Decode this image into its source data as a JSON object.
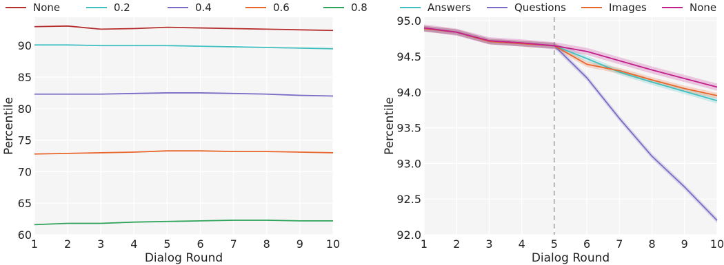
{
  "chart_data": [
    {
      "type": "line",
      "xlabel": "Dialog Round",
      "ylabel": "Percentile",
      "x": [
        1,
        2,
        3,
        4,
        5,
        6,
        7,
        8,
        9,
        10
      ],
      "xlim": [
        1,
        10
      ],
      "ylim": [
        60,
        94.5
      ],
      "xticks": [
        1,
        2,
        3,
        4,
        5,
        6,
        7,
        8,
        9,
        10
      ],
      "yticks": [
        60,
        65,
        70,
        75,
        80,
        85,
        90
      ],
      "grid": true,
      "legend_position": "top",
      "series": [
        {
          "name": "None",
          "color": "#b5302f",
          "values": [
            93.0,
            93.1,
            92.6,
            92.7,
            92.9,
            92.8,
            92.7,
            92.6,
            92.5,
            92.4
          ]
        },
        {
          "name": "0.2",
          "color": "#3fbfbf",
          "values": [
            90.1,
            90.1,
            90.0,
            90.0,
            90.0,
            89.9,
            89.8,
            89.7,
            89.6,
            89.5
          ]
        },
        {
          "name": "0.4",
          "color": "#7a6cc4",
          "values": [
            82.3,
            82.3,
            82.3,
            82.4,
            82.5,
            82.5,
            82.4,
            82.3,
            82.1,
            82.0
          ]
        },
        {
          "name": "0.6",
          "color": "#e8662a",
          "values": [
            72.8,
            72.9,
            73.0,
            73.1,
            73.3,
            73.3,
            73.2,
            73.2,
            73.1,
            73.0
          ]
        },
        {
          "name": "0.8",
          "color": "#2fa35a",
          "values": [
            61.6,
            61.8,
            61.8,
            62.0,
            62.1,
            62.2,
            62.3,
            62.3,
            62.2,
            62.2
          ]
        }
      ]
    },
    {
      "type": "line",
      "xlabel": "Dialog Round",
      "ylabel": "Percentile",
      "x": [
        1,
        2,
        3,
        4,
        5,
        6,
        7,
        8,
        9,
        10
      ],
      "xlim": [
        1,
        10
      ],
      "ylim": [
        92.0,
        95.05
      ],
      "xticks": [
        1,
        2,
        3,
        4,
        5,
        6,
        7,
        8,
        9,
        10
      ],
      "yticks": [
        92.0,
        92.5,
        93.0,
        93.5,
        94.0,
        94.5,
        95.0
      ],
      "ytick_labels": [
        "92.0",
        "92.5",
        "93.0",
        "93.5",
        "94.0",
        "94.5",
        "95.0"
      ],
      "grid": true,
      "legend_position": "top",
      "vline_x": 5,
      "series": [
        {
          "name": "Answers",
          "color": "#3fbfbf",
          "values": [
            94.89,
            94.84,
            94.71,
            94.68,
            94.65,
            94.47,
            94.28,
            94.14,
            94.01,
            93.88
          ],
          "band": 0.04
        },
        {
          "name": "Questions",
          "color": "#7a6cc4",
          "values": [
            94.89,
            94.84,
            94.71,
            94.68,
            94.65,
            94.2,
            93.63,
            93.1,
            92.67,
            92.2
          ],
          "band": 0.04
        },
        {
          "name": "Images",
          "color": "#e8662a",
          "values": [
            94.89,
            94.84,
            94.71,
            94.68,
            94.65,
            94.39,
            94.3,
            94.17,
            94.05,
            93.95
          ],
          "band": 0.04
        },
        {
          "name": "None",
          "color": "#c21f8b",
          "values": [
            94.9,
            94.84,
            94.72,
            94.69,
            94.65,
            94.57,
            94.44,
            94.31,
            94.19,
            94.07
          ],
          "band": 0.05
        }
      ]
    }
  ]
}
